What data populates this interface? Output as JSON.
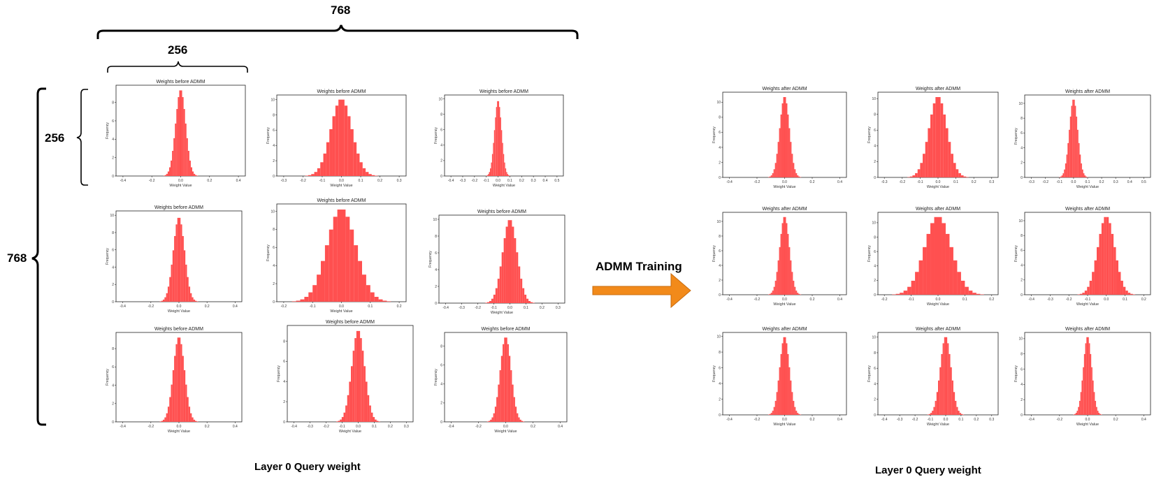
{
  "dimensions": {
    "top_outer": "768",
    "top_inner": "256",
    "left_outer": "768",
    "left_inner": "256"
  },
  "arrow": {
    "label": "ADMM Training",
    "color": "#f28a1a"
  },
  "captions": {
    "left": "Layer 0 Query weight",
    "right": "Layer 0 Query weight"
  },
  "axis_text": {
    "xlabel": "Weight Value",
    "ylabel": "Frequency"
  },
  "bar_color": "#ff5050",
  "before_panels": [
    {
      "title": "Weights before ADMM",
      "xticks": [
        "-0.4",
        "-0.2",
        "0.0",
        "0.2",
        "0.4"
      ],
      "yticks": [
        "0",
        "2",
        "4",
        "6",
        "8"
      ],
      "sigma": 0.035,
      "mu": 0.0,
      "ymax": 9.4
    },
    {
      "title": "Weights before ADMM",
      "xticks": [
        "-0.3",
        "-0.2",
        "-0.1",
        "0.0",
        "0.1",
        "0.2",
        "0.3"
      ],
      "yticks": [
        "0",
        "2",
        "4",
        "6",
        "8",
        "10"
      ],
      "sigma": 0.055,
      "mu": 0.0,
      "ymax": 10.1
    },
    {
      "title": "Weights before ADMM",
      "xticks": [
        "-0.4",
        "-0.3",
        "-0.2",
        "-0.1",
        "0.0",
        "0.1",
        "0.2",
        "0.3",
        "0.4",
        "0.5"
      ],
      "yticks": [
        "0",
        "2",
        "4",
        "6",
        "8",
        "10"
      ],
      "sigma": 0.03,
      "mu": 0.0,
      "ymax": 9.8
    },
    {
      "title": "Weights before ADMM",
      "xticks": [
        "-0.4",
        "-0.2",
        "0.0",
        "0.2",
        "0.4"
      ],
      "yticks": [
        "0",
        "2",
        "4",
        "6",
        "8",
        "10"
      ],
      "sigma": 0.04,
      "mu": 0.0,
      "ymax": 9.8
    },
    {
      "title": "Weights before ADMM",
      "xticks": [
        "-0.2",
        "-0.1",
        "0.0",
        "0.1",
        "0.2"
      ],
      "yticks": [
        "0",
        "2",
        "4",
        "6",
        "8",
        "10"
      ],
      "sigma": 0.05,
      "mu": 0.0,
      "ymax": 10.3
    },
    {
      "title": "Weights before ADMM",
      "xticks": [
        "-0.4",
        "-0.3",
        "-0.2",
        "-0.1",
        "0.0",
        "0.1",
        "0.2",
        "0.3"
      ],
      "yticks": [
        "0",
        "2",
        "4",
        "6",
        "8",
        "10"
      ],
      "sigma": 0.045,
      "mu": 0.0,
      "ymax": 10.0
    },
    {
      "title": "Weights before ADMM",
      "xticks": [
        "-0.4",
        "-0.2",
        "0.0",
        "0.2",
        "0.4"
      ],
      "yticks": [
        "0",
        "2",
        "4",
        "6",
        "8"
      ],
      "sigma": 0.04,
      "mu": 0.0,
      "ymax": 9.3
    },
    {
      "title": "Weights before ADMM",
      "xticks": [
        "-0.4",
        "-0.3",
        "-0.2",
        "-0.1",
        "0.0",
        "0.1",
        "0.2",
        "0.3"
      ],
      "yticks": [
        "0",
        "2",
        "4",
        "6",
        "8"
      ],
      "sigma": 0.04,
      "mu": 0.0,
      "ymax": 9.1
    },
    {
      "title": "Weights before ADMM",
      "xticks": [
        "-0.4",
        "-0.2",
        "0.0",
        "0.2",
        "0.4"
      ],
      "yticks": [
        "0",
        "2",
        "4",
        "6",
        "8"
      ],
      "sigma": 0.04,
      "mu": 0.0,
      "ymax": 9.0
    }
  ],
  "after_panels": [
    {
      "title": "Weights after ADMM",
      "xticks": [
        "-0.4",
        "-0.2",
        "0.0",
        "0.2",
        "0.4"
      ],
      "yticks": [
        "0",
        "2",
        "4",
        "6",
        "8",
        "10"
      ],
      "sigma": 0.035,
      "mu": 0.0,
      "ymax": 10.8
    },
    {
      "title": "Weights after ADMM",
      "xticks": [
        "-0.3",
        "-0.2",
        "-0.1",
        "0.0",
        "0.1",
        "0.2",
        "0.3"
      ],
      "yticks": [
        "0",
        "2",
        "4",
        "6",
        "8",
        "10"
      ],
      "sigma": 0.05,
      "mu": 0.0,
      "ymax": 10.3
    },
    {
      "title": "Weights after ADMM",
      "xticks": [
        "-0.3",
        "-0.2",
        "-0.1",
        "0.0",
        "0.1",
        "0.2",
        "0.3",
        "0.4",
        "0.5"
      ],
      "yticks": [
        "0",
        "2",
        "4",
        "6",
        "8",
        "10"
      ],
      "sigma": 0.03,
      "mu": 0.0,
      "ymax": 10.6
    },
    {
      "title": "Weights after ADMM",
      "xticks": [
        "-0.4",
        "-0.2",
        "0.0",
        "0.2",
        "0.4"
      ],
      "yticks": [
        "0",
        "2",
        "4",
        "6",
        "8",
        "10"
      ],
      "sigma": 0.035,
      "mu": 0.0,
      "ymax": 10.7
    },
    {
      "title": "Weights after ADMM",
      "xticks": [
        "-0.2",
        "-0.1",
        "0.0",
        "0.1",
        "0.2"
      ],
      "yticks": [
        "0",
        "2",
        "4",
        "6",
        "8",
        "10"
      ],
      "sigma": 0.05,
      "mu": 0.0,
      "ymax": 10.9
    },
    {
      "title": "Weights after ADMM",
      "xticks": [
        "-0.4",
        "-0.3",
        "-0.2",
        "-0.1",
        "0.0",
        "0.1",
        "0.2"
      ],
      "yticks": [
        "0",
        "2",
        "4",
        "6",
        "8",
        "10"
      ],
      "sigma": 0.045,
      "mu": 0.0,
      "ymax": 10.6
    },
    {
      "title": "Weights after ADMM",
      "xticks": [
        "-0.4",
        "-0.2",
        "0.0",
        "0.2",
        "0.4"
      ],
      "yticks": [
        "0",
        "2",
        "4",
        "6",
        "8",
        "10"
      ],
      "sigma": 0.035,
      "mu": 0.0,
      "ymax": 10.0
    },
    {
      "title": "Weights after ADMM",
      "xticks": [
        "-0.4",
        "-0.3",
        "-0.2",
        "-0.1",
        "0.0",
        "0.1",
        "0.2",
        "0.3"
      ],
      "yticks": [
        "0",
        "2",
        "4",
        "6",
        "8",
        "10"
      ],
      "sigma": 0.035,
      "mu": 0.0,
      "ymax": 10.1
    },
    {
      "title": "Weights after ADMM",
      "xticks": [
        "-0.4",
        "-0.2",
        "0.0",
        "0.2",
        "0.4"
      ],
      "yticks": [
        "0",
        "2",
        "4",
        "6",
        "8",
        "10"
      ],
      "sigma": 0.03,
      "mu": 0.0,
      "ymax": 10.3
    }
  ]
}
